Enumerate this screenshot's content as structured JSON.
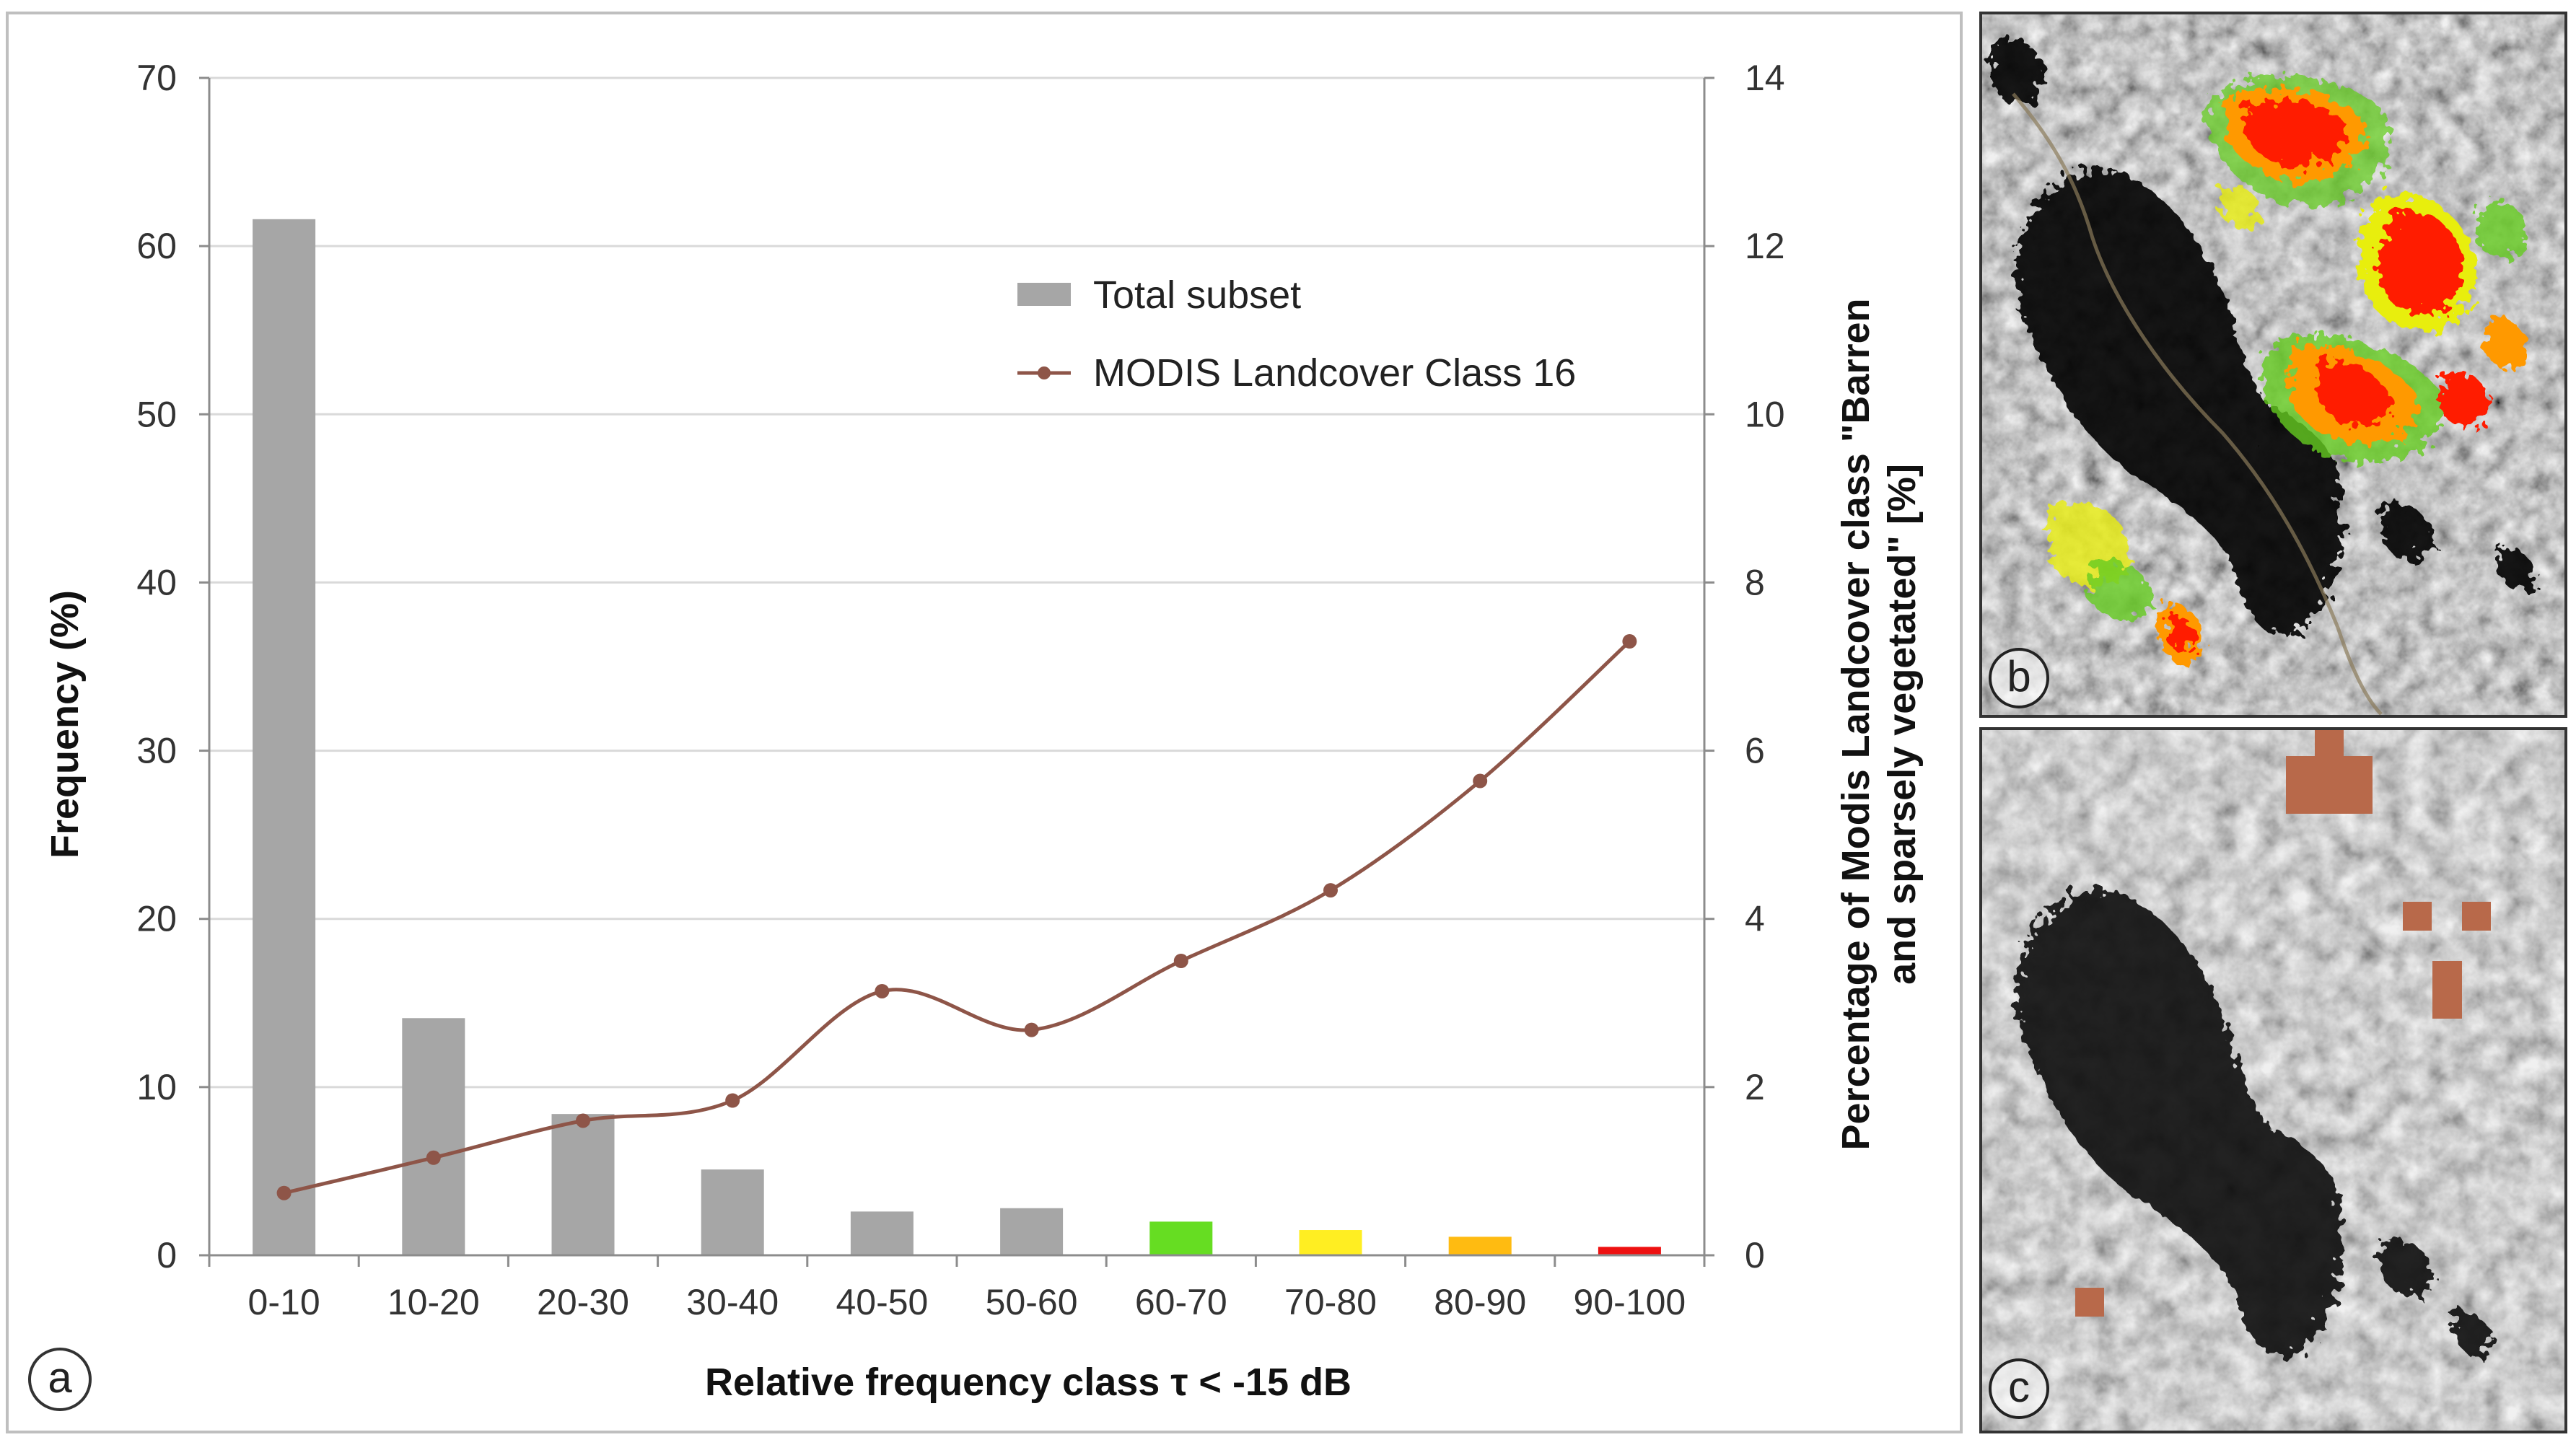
{
  "chart_data": {
    "type": "bar",
    "categories": [
      "0-10",
      "10-20",
      "20-30",
      "30-40",
      "40-50",
      "50-60",
      "60-70",
      "70-80",
      "80-90",
      "90-100"
    ],
    "series": [
      {
        "name": "Total subset",
        "type": "bar",
        "axis": "left",
        "values": [
          61.6,
          14.1,
          8.4,
          5.1,
          2.6,
          2.8,
          2.0,
          1.5,
          1.1,
          0.5
        ],
        "colors": [
          "#a6a6a6",
          "#a6a6a6",
          "#a6a6a6",
          "#a6a6a6",
          "#a6a6a6",
          "#a6a6a6",
          "#66dd22",
          "#ffee22",
          "#ffbb11",
          "#ee1111"
        ]
      },
      {
        "name": "MODIS Landcover Class 16",
        "type": "line",
        "axis": "right",
        "smooth": true,
        "color": "#8e5548",
        "values": [
          0.74,
          1.16,
          1.6,
          1.84,
          3.14,
          2.68,
          3.5,
          4.34,
          5.64,
          7.3
        ]
      }
    ],
    "xlabel": "Relative frequency  class τ < -15 dB",
    "ylabel": "Frequency (%)",
    "y2label_line1": "Percentage  of Modis  Landcover  class \"Barren",
    "y2label_line2": "and sparsely vegetated\" [%]",
    "ylim": [
      0,
      70
    ],
    "y2lim": [
      0,
      14
    ],
    "yticks": [
      "0",
      "10",
      "20",
      "30",
      "40",
      "50",
      "60",
      "70"
    ],
    "y2ticks": [
      "0",
      "2",
      "4",
      "6",
      "8",
      "10",
      "12",
      "14"
    ],
    "grid": true,
    "legend": "upper-right"
  },
  "panels": {
    "a": "a",
    "b": "b",
    "c": "c"
  },
  "palette": {
    "grid": "#d9d9d9",
    "axis": "#8c8c8c",
    "frame": "#bfbfbf",
    "overlay_red": "#ff1a00",
    "overlay_orange": "#ff9900",
    "overlay_yellow": "#e8ee10",
    "overlay_green": "#66cc22",
    "barren_patch": "#b8694a"
  }
}
